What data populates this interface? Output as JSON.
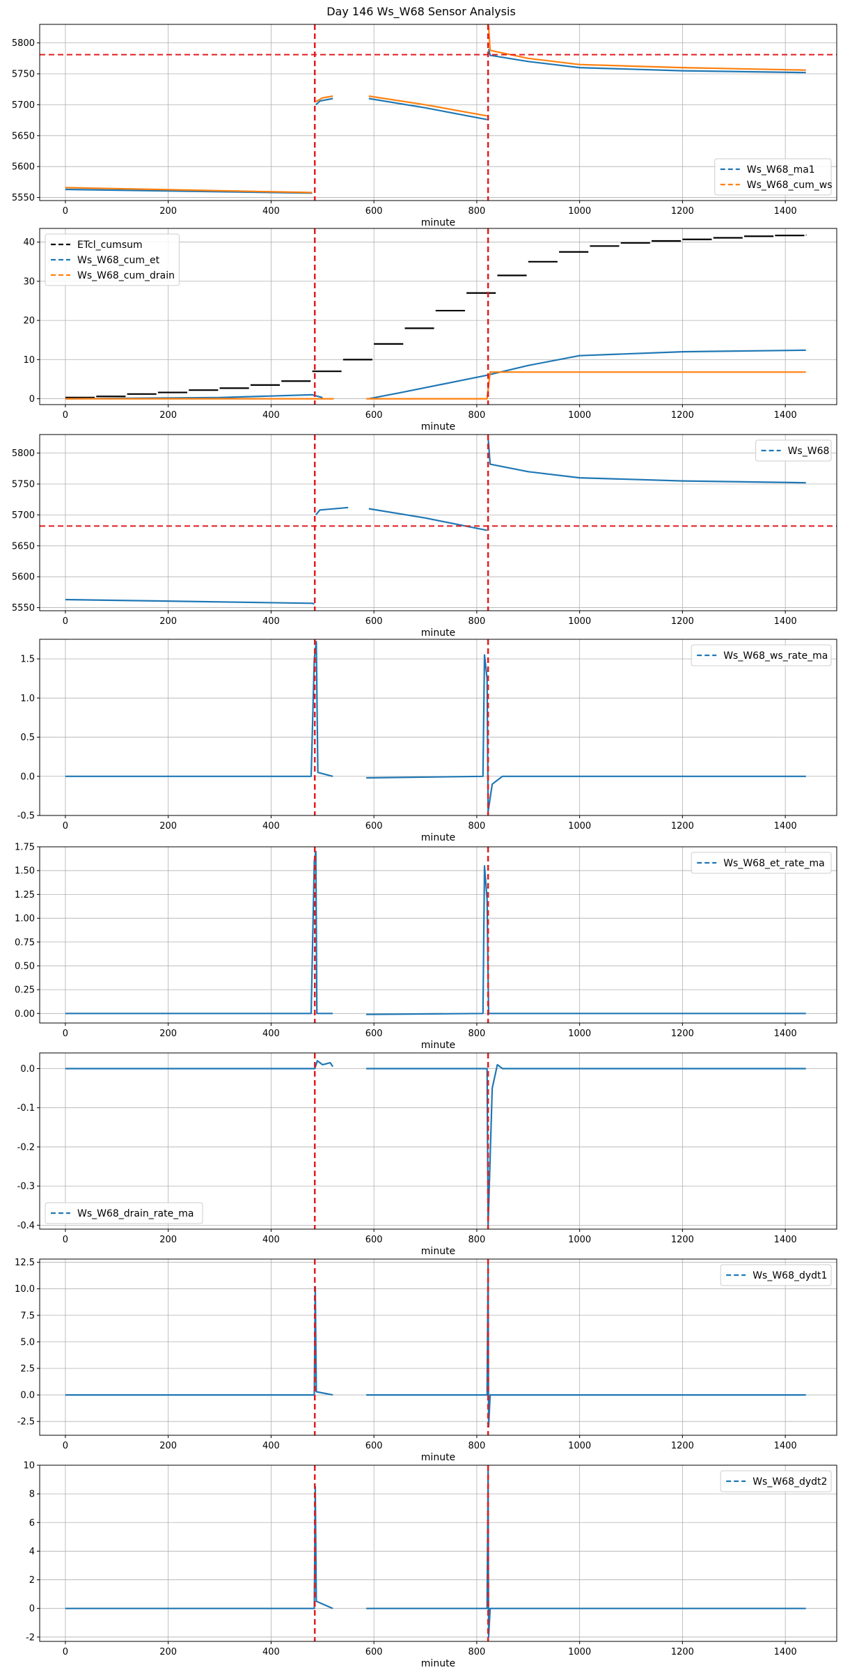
{
  "chart_data": {
    "title": "Day 146 Ws_W68 Sensor Analysis",
    "vlines": [
      485,
      822
    ],
    "panels": [
      {
        "type": "line",
        "xlabel": "minute",
        "xlim": [
          -50,
          1500
        ],
        "ylim": [
          5545,
          5830
        ],
        "xticks": [
          0,
          200,
          400,
          600,
          800,
          1000,
          1200,
          1400
        ],
        "yticks": [
          5550,
          5600,
          5650,
          5700,
          5750,
          5800
        ],
        "hline": 5781,
        "legend_pos": "lower-right",
        "series": [
          {
            "name": "Ws_W68_ma1",
            "color": "#1f77b4",
            "segments": [
              [
                [
                  0,
                  5563
                ],
                [
                  480,
                  5557
                ]
              ],
              [
                [
                  487,
                  5700
                ],
                [
                  495,
                  5706
                ],
                [
                  520,
                  5710
                ]
              ],
              [
                [
                  590,
                  5710
                ],
                [
                  700,
                  5695
                ],
                [
                  820,
                  5676
                ]
              ],
              [
                [
                  823,
                  5790
                ],
                [
                  826,
                  5780
                ],
                [
                  900,
                  5770
                ],
                [
                  1000,
                  5760
                ],
                [
                  1200,
                  5755
                ],
                [
                  1440,
                  5752
                ]
              ]
            ]
          },
          {
            "name": "Ws_W68_cum_ws",
            "color": "#ff7f0e",
            "segments": [
              [
                [
                  0,
                  5566
                ],
                [
                  480,
                  5558
                ]
              ],
              [
                [
                  487,
                  5705
                ],
                [
                  500,
                  5711
                ],
                [
                  520,
                  5714
                ]
              ],
              [
                [
                  590,
                  5714
                ],
                [
                  700,
                  5700
                ],
                [
                  820,
                  5682
                ]
              ],
              [
                [
                  823,
                  5828
                ],
                [
                  826,
                  5788
                ],
                [
                  900,
                  5775
                ],
                [
                  1000,
                  5765
                ],
                [
                  1200,
                  5760
                ],
                [
                  1440,
                  5756
                ]
              ]
            ]
          }
        ]
      },
      {
        "type": "line",
        "xlabel": "minute",
        "xlim": [
          -50,
          1500
        ],
        "ylim": [
          -1.5,
          43.5
        ],
        "xticks": [
          0,
          200,
          400,
          600,
          800,
          1000,
          1200,
          1400
        ],
        "yticks": [
          0,
          10,
          20,
          30,
          40
        ],
        "legend_pos": "upper-left",
        "series": [
          {
            "name": "ETcl_cumsum",
            "color": "#000000",
            "steps": [
              [
                0,
                0.3
              ],
              [
                60,
                0.6
              ],
              [
                120,
                1.2
              ],
              [
                180,
                1.6
              ],
              [
                240,
                2.2
              ],
              [
                300,
                2.7
              ],
              [
                360,
                3.5
              ],
              [
                420,
                4.5
              ],
              [
                480,
                7.0
              ],
              [
                540,
                10.0
              ],
              [
                600,
                14.0
              ],
              [
                660,
                18.0
              ],
              [
                720,
                22.5
              ],
              [
                780,
                27.0
              ],
              [
                840,
                31.5
              ],
              [
                900,
                35.0
              ],
              [
                960,
                37.5
              ],
              [
                1020,
                39.0
              ],
              [
                1080,
                39.8
              ],
              [
                1140,
                40.3
              ],
              [
                1200,
                40.7
              ],
              [
                1260,
                41.1
              ],
              [
                1320,
                41.5
              ],
              [
                1380,
                41.7
              ],
              [
                1440,
                41.8
              ]
            ]
          },
          {
            "name": "Ws_W68_cum_et",
            "color": "#1f77b4",
            "segments": [
              [
                [
                  0,
                  0
                ],
                [
                  300,
                  0.3
                ],
                [
                  480,
                  1.0
                ],
                [
                  500,
                  0.3
                ]
              ],
              [
                [
                  590,
                  0
                ],
                [
                  650,
                  1.5
                ],
                [
                  820,
                  6.0
                ],
                [
                  900,
                  8.5
                ],
                [
                  1000,
                  11.0
                ],
                [
                  1200,
                  12.0
                ],
                [
                  1440,
                  12.4
                ]
              ]
            ]
          },
          {
            "name": "Ws_W68_cum_drain",
            "color": "#ff7f0e",
            "segments": [
              [
                [
                  0,
                  0
                ],
                [
                  522,
                  0
                ]
              ],
              [
                [
                  585,
                  0
                ],
                [
                  820,
                  0
                ],
                [
                  826,
                  6.8
                ],
                [
                  1440,
                  6.8
                ]
              ]
            ]
          }
        ]
      },
      {
        "type": "line",
        "xlabel": "minute",
        "xlim": [
          -50,
          1500
        ],
        "ylim": [
          5545,
          5830
        ],
        "xticks": [
          0,
          200,
          400,
          600,
          800,
          1000,
          1200,
          1400
        ],
        "yticks": [
          5550,
          5600,
          5650,
          5700,
          5750,
          5800
        ],
        "hline": 5682,
        "legend_pos": "upper-right",
        "series": [
          {
            "name": "Ws_W68",
            "color": "#1f77b4",
            "segments": [
              [
                [
                  0,
                  5563
                ],
                [
                  480,
                  5557
                ],
                [
                  484,
                  5556
                ]
              ],
              [
                [
                  487,
                  5700
                ],
                [
                  495,
                  5708
                ],
                [
                  550,
                  5712
                ]
              ],
              [
                [
                  590,
                  5710
                ],
                [
                  700,
                  5695
                ],
                [
                  820,
                  5675
                ]
              ],
              [
                [
                  822,
                  5825
                ],
                [
                  826,
                  5782
                ],
                [
                  900,
                  5770
                ],
                [
                  1000,
                  5760
                ],
                [
                  1200,
                  5755
                ],
                [
                  1440,
                  5752
                ]
              ]
            ]
          }
        ]
      },
      {
        "type": "line",
        "xlabel": "minute",
        "xlim": [
          -50,
          1500
        ],
        "ylim": [
          -0.5,
          1.75
        ],
        "xticks": [
          0,
          200,
          400,
          600,
          800,
          1000,
          1200,
          1400
        ],
        "yticks": [
          -0.5,
          0.0,
          0.5,
          1.0,
          1.5
        ],
        "legend_pos": "upper-right",
        "series": [
          {
            "name": "Ws_W68_ws_rate_ma",
            "color": "#1f77b4",
            "segments": [
              [
                [
                  0,
                  0
                ],
                [
                  478,
                  0
                ],
                [
                  484,
                  1.5
                ],
                [
                  488,
                  1.72
                ],
                [
                  491,
                  0.05
                ],
                [
                  520,
                  0.0
                ]
              ],
              [
                [
                  585,
                  -0.02
                ],
                [
                  812,
                  0
                ],
                [
                  815,
                  1.55
                ],
                [
                  820,
                  1.25
                ],
                [
                  822,
                  -0.45
                ],
                [
                  830,
                  -0.1
                ],
                [
                  850,
                  0
                ],
                [
                  1440,
                  0
                ]
              ]
            ]
          }
        ]
      },
      {
        "type": "line",
        "xlabel": "minute",
        "xlim": [
          -50,
          1500
        ],
        "ylim": [
          -0.1,
          1.75
        ],
        "xticks": [
          0,
          200,
          400,
          600,
          800,
          1000,
          1200,
          1400
        ],
        "yticks": [
          0.0,
          0.25,
          0.5,
          0.75,
          1.0,
          1.25,
          1.5,
          1.75
        ],
        "legend_pos": "upper-right",
        "series": [
          {
            "name": "Ws_W68_et_rate_ma",
            "color": "#1f77b4",
            "segments": [
              [
                [
                  0,
                  0
                ],
                [
                  478,
                  0
                ],
                [
                  484,
                  1.6
                ],
                [
                  487,
                  1.7
                ],
                [
                  489,
                  0
                ],
                [
                  520,
                  0
                ]
              ],
              [
                [
                  585,
                  -0.01
                ],
                [
                  812,
                  0
                ],
                [
                  815,
                  1.55
                ],
                [
                  820,
                  1.2
                ],
                [
                  823,
                  0
                ],
                [
                  1440,
                  0
                ]
              ]
            ]
          }
        ]
      },
      {
        "type": "line",
        "xlabel": "minute",
        "xlim": [
          -50,
          1500
        ],
        "ylim": [
          -0.41,
          0.04
        ],
        "xticks": [
          0,
          200,
          400,
          600,
          800,
          1000,
          1200,
          1400
        ],
        "yticks": [
          -0.4,
          -0.3,
          -0.2,
          -0.1,
          0.0
        ],
        "legend_pos": "lower-left",
        "series": [
          {
            "name": "Ws_W68_drain_rate_ma",
            "color": "#1f77b4",
            "segments": [
              [
                [
                  0,
                  0
                ],
                [
                  485,
                  0
                ],
                [
                  490,
                  0.02
                ],
                [
                  500,
                  0.01
                ],
                [
                  515,
                  0.015
                ],
                [
                  520,
                  0.005
                ]
              ],
              [
                [
                  585,
                  0
                ],
                [
                  820,
                  0
                ],
                [
                  822,
                  -0.4
                ],
                [
                  830,
                  -0.05
                ],
                [
                  840,
                  0.01
                ],
                [
                  850,
                  0
                ],
                [
                  1440,
                  0
                ]
              ]
            ]
          }
        ]
      },
      {
        "type": "line",
        "xlabel": "minute",
        "xlim": [
          -50,
          1500
        ],
        "ylim": [
          -3.8,
          12.8
        ],
        "xticks": [
          0,
          200,
          400,
          600,
          800,
          1000,
          1200,
          1400
        ],
        "yticks": [
          -2.5,
          0.0,
          2.5,
          5.0,
          7.5,
          10.0,
          12.5
        ],
        "legend_pos": "upper-right",
        "series": [
          {
            "name": "Ws_W68_dydt1",
            "color": "#1f77b4",
            "segments": [
              [
                [
                  0,
                  0
                ],
                [
                  484,
                  0
                ],
                [
                  486,
                  10.2
                ],
                [
                  488,
                  0.3
                ],
                [
                  520,
                  0
                ]
              ],
              [
                [
                  585,
                  0
                ],
                [
                  820,
                  0
                ],
                [
                  822,
                  12.5
                ],
                [
                  823,
                  -3.0
                ],
                [
                  826,
                  0
                ],
                [
                  1440,
                  0
                ]
              ]
            ]
          }
        ]
      },
      {
        "type": "line",
        "xlabel": "minute",
        "xlim": [
          -50,
          1500
        ],
        "ylim": [
          -2.3,
          10
        ],
        "xticks": [
          0,
          200,
          400,
          600,
          800,
          1000,
          1200,
          1400
        ],
        "yticks": [
          -2,
          0,
          2,
          4,
          6,
          8,
          10
        ],
        "legend_pos": "upper-right",
        "series": [
          {
            "name": "Ws_W68_dydt2",
            "color": "#1f77b4",
            "segments": [
              [
                [
                  0,
                  0
                ],
                [
                  484,
                  0
                ],
                [
                  486,
                  8.5
                ],
                [
                  488,
                  0.5
                ],
                [
                  520,
                  0
                ]
              ],
              [
                [
                  585,
                  0
                ],
                [
                  820,
                  0
                ],
                [
                  822,
                  9.7
                ],
                [
                  823,
                  -2.0
                ],
                [
                  826,
                  0
                ],
                [
                  1440,
                  0
                ]
              ]
            ]
          }
        ]
      }
    ]
  }
}
